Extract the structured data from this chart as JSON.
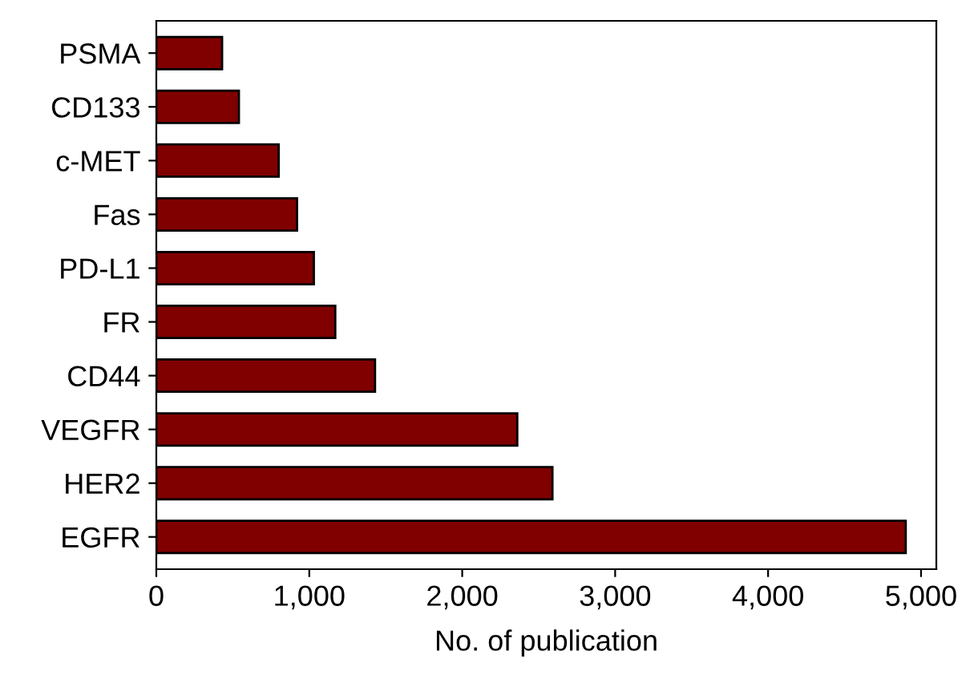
{
  "chart_data": {
    "type": "bar",
    "orientation": "horizontal",
    "xlabel": "No. of publication",
    "categories": [
      "PSMA",
      "CD133",
      "c-MET",
      "Fas",
      "PD-L1",
      "FR",
      "CD44",
      "VEGFR",
      "HER2",
      "EGFR"
    ],
    "values": [
      430,
      540,
      800,
      920,
      1030,
      1170,
      1430,
      2360,
      2590,
      4900
    ],
    "color": "#800000",
    "xlim": [
      0,
      5100
    ],
    "xticks": [
      {
        "value": 0,
        "label": "0"
      },
      {
        "value": 1000,
        "label": "1,000"
      },
      {
        "value": 2000,
        "label": "2,000"
      },
      {
        "value": 3000,
        "label": "3,000"
      },
      {
        "value": 4000,
        "label": "4,000"
      },
      {
        "value": 5000,
        "label": "5,000"
      }
    ],
    "grid": false,
    "legend": false
  }
}
